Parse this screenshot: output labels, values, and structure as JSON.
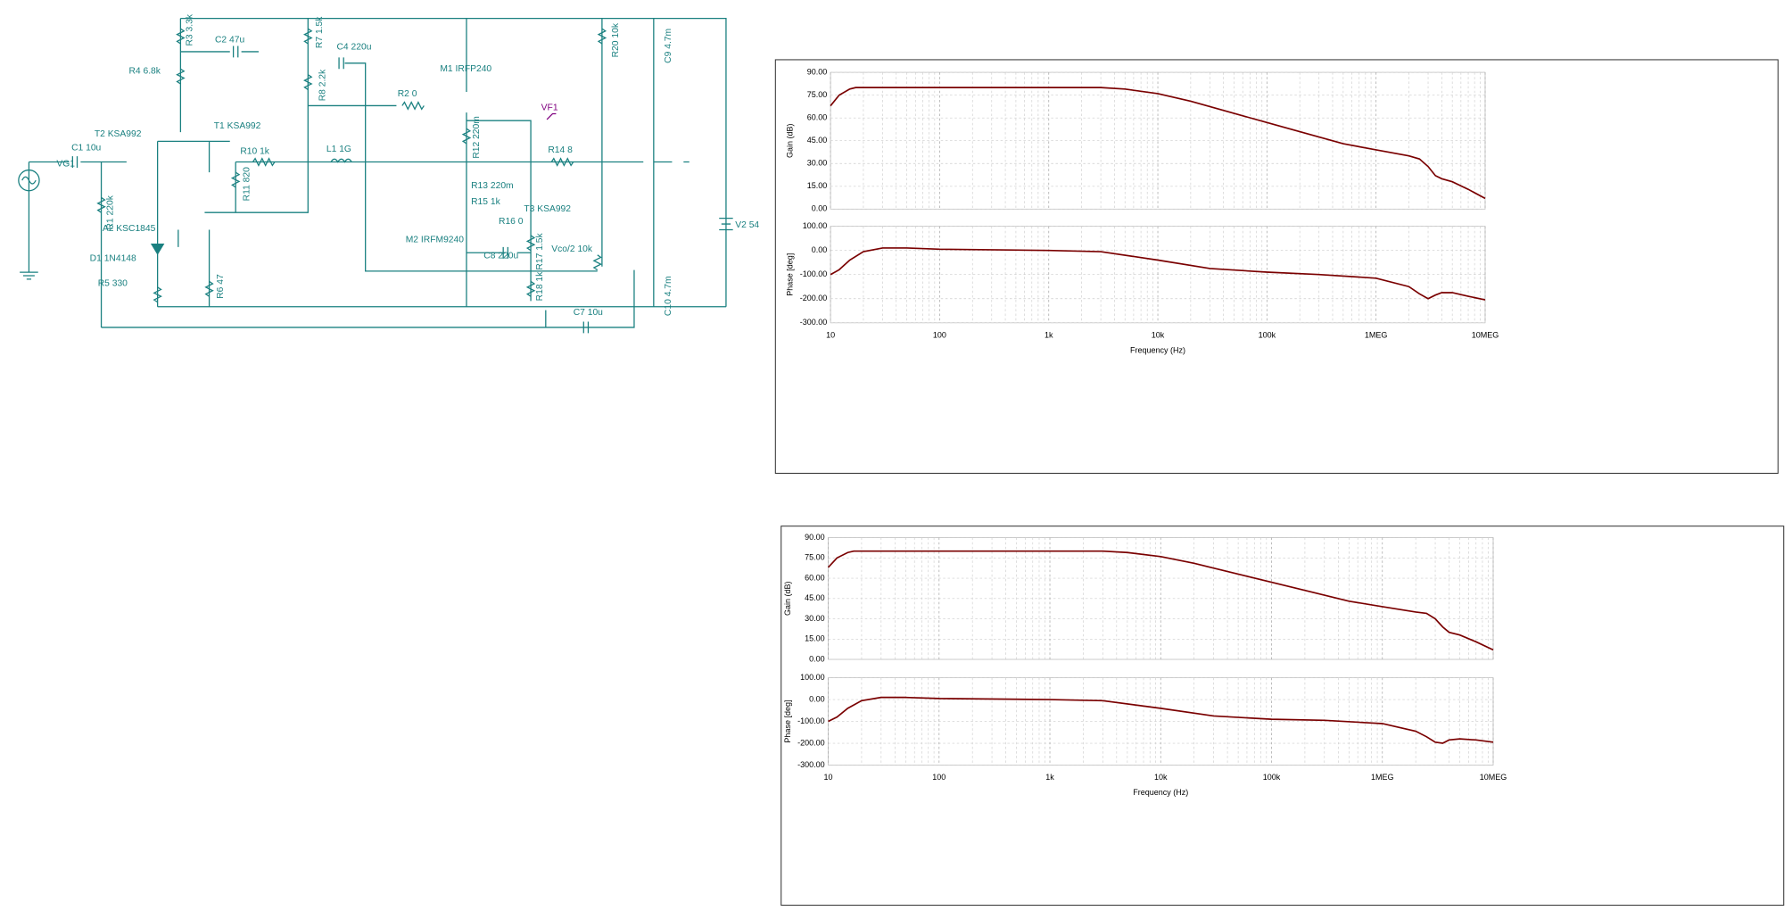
{
  "schematic": {
    "labels": [
      "R3 3.3k",
      "C2 47u",
      "R4 6.8k",
      "R7 1.5k",
      "C4 220u",
      "R8 2.2k",
      "M1 IRFP240",
      "R2 0",
      "VF1",
      "R20 10k",
      "C9 4.7m",
      "T2 KSA992",
      "T1 KSA992",
      "C1 10u",
      "VG1",
      "R10 1k",
      "L1 1G",
      "R12 220m",
      "R14 8",
      "R11 820",
      "R13 220m",
      "R15 1k",
      "T3 KSA992",
      "R1 220k",
      "A2 KSC1845",
      "R16 0",
      "M2 IRFM9240",
      "R17 1.5k",
      "C8 220u",
      "Vco/2 10k",
      "D1 1N4148",
      "V2 54",
      "R5 330",
      "R6 47",
      "R18 1k",
      "C10 4.7m",
      "C7 10u"
    ]
  },
  "chart_data": [
    {
      "type": "line",
      "ylabel": "Gain (dB)",
      "log_x": true,
      "grid": true,
      "xlim": [
        10,
        10000000
      ],
      "xticks": [
        10,
        100,
        {
          "value": 1000,
          "label": "1k"
        },
        {
          "value": 10000,
          "label": "10k"
        },
        {
          "value": 100000,
          "label": "100k"
        },
        {
          "value": 1000000,
          "label": "1MEG"
        },
        {
          "value": 10000000,
          "label": "10MEG"
        }
      ],
      "ylim": [
        0,
        90
      ],
      "yticks": [
        {
          "value": 0,
          "label": "0.00"
        },
        {
          "value": 15,
          "label": "15.00"
        },
        {
          "value": 30,
          "label": "30.00"
        },
        {
          "value": 45,
          "label": "45.00"
        },
        {
          "value": 60,
          "label": "60.00"
        },
        {
          "value": 75,
          "label": "75.00"
        },
        {
          "value": 90,
          "label": "90.00"
        }
      ],
      "x": [
        10,
        12,
        15,
        17,
        20,
        100,
        1000,
        3000,
        5000,
        10000,
        20000,
        50000,
        100000,
        200000,
        500000,
        1000000,
        2000000,
        2500000,
        3000000,
        3500000,
        4000000,
        5000000,
        7000000,
        10000000
      ],
      "series": [
        {
          "color": "#7a0000",
          "values": [
            68,
            75,
            79,
            80,
            80,
            80,
            80,
            80,
            79,
            76,
            71,
            63,
            57,
            51,
            43,
            39,
            35,
            33,
            28,
            22,
            20,
            18,
            13,
            7
          ]
        }
      ]
    },
    {
      "type": "line",
      "ylabel": "Phase [deg]",
      "xlabel": "Frequency (Hz)",
      "log_x": true,
      "grid": true,
      "xlim": [
        10,
        10000000
      ],
      "xticks": [
        10,
        100,
        {
          "value": 1000,
          "label": "1k"
        },
        {
          "value": 10000,
          "label": "10k"
        },
        {
          "value": 100000,
          "label": "100k"
        },
        {
          "value": 1000000,
          "label": "1MEG"
        },
        {
          "value": 10000000,
          "label": "10MEG"
        }
      ],
      "ylim": [
        -300,
        100
      ],
      "yticks": [
        {
          "value": -300,
          "label": "-300.00"
        },
        {
          "value": -200,
          "label": "-200.00"
        },
        {
          "value": -100,
          "label": "-100.00"
        },
        {
          "value": 0,
          "label": "0.00"
        },
        {
          "value": 100,
          "label": "100.00"
        }
      ],
      "x": [
        10,
        12,
        15,
        20,
        30,
        50,
        100,
        1000,
        3000,
        10000,
        30000,
        100000,
        300000,
        1000000,
        2000000,
        2500000,
        3000000,
        3500000,
        4000000,
        5000000,
        7000000,
        10000000
      ],
      "series": [
        {
          "color": "#7a0000",
          "values": [
            -100,
            -80,
            -40,
            -5,
            10,
            10,
            5,
            0,
            -5,
            -40,
            -75,
            -90,
            -100,
            -115,
            -150,
            -180,
            -200,
            -185,
            -175,
            -175,
            -190,
            -205
          ]
        }
      ]
    },
    {
      "type": "line",
      "ylabel": "Gain (dB)",
      "log_x": true,
      "grid": true,
      "xlim": [
        10,
        10000000
      ],
      "xticks": [
        10,
        100,
        {
          "value": 1000,
          "label": "1k"
        },
        {
          "value": 10000,
          "label": "10k"
        },
        {
          "value": 100000,
          "label": "100k"
        },
        {
          "value": 1000000,
          "label": "1MEG"
        },
        {
          "value": 10000000,
          "label": "10MEG"
        }
      ],
      "ylim": [
        0,
        90
      ],
      "yticks": [
        {
          "value": 0,
          "label": "0.00"
        },
        {
          "value": 15,
          "label": "15.00"
        },
        {
          "value": 30,
          "label": "30.00"
        },
        {
          "value": 45,
          "label": "45.00"
        },
        {
          "value": 60,
          "label": "60.00"
        },
        {
          "value": 75,
          "label": "75.00"
        },
        {
          "value": 90,
          "label": "90.00"
        }
      ],
      "x": [
        10,
        12,
        15,
        17,
        20,
        100,
        1000,
        3000,
        5000,
        10000,
        20000,
        50000,
        100000,
        200000,
        500000,
        1000000,
        2000000,
        2500000,
        3000000,
        3500000,
        4000000,
        5000000,
        7000000,
        10000000
      ],
      "series": [
        {
          "color": "#7a0000",
          "values": [
            68,
            75,
            79,
            80,
            80,
            80,
            80,
            80,
            79,
            76,
            71,
            63,
            57,
            51,
            43,
            39,
            35,
            34,
            30,
            24,
            20,
            18,
            13,
            7
          ]
        }
      ]
    },
    {
      "type": "line",
      "ylabel": "Phase [deg]",
      "xlabel": "Frequency (Hz)",
      "log_x": true,
      "grid": true,
      "xlim": [
        10,
        10000000
      ],
      "xticks": [
        10,
        100,
        {
          "value": 1000,
          "label": "1k"
        },
        {
          "value": 10000,
          "label": "10k"
        },
        {
          "value": 100000,
          "label": "100k"
        },
        {
          "value": 1000000,
          "label": "1MEG"
        },
        {
          "value": 10000000,
          "label": "10MEG"
        }
      ],
      "ylim": [
        -300,
        100
      ],
      "yticks": [
        {
          "value": -300,
          "label": "-300.00"
        },
        {
          "value": -200,
          "label": "-200.00"
        },
        {
          "value": -100,
          "label": "-100.00"
        },
        {
          "value": 0,
          "label": "0.00"
        },
        {
          "value": 100,
          "label": "100.00"
        }
      ],
      "x": [
        10,
        12,
        15,
        20,
        30,
        50,
        100,
        1000,
        3000,
        10000,
        30000,
        100000,
        300000,
        1000000,
        2000000,
        2500000,
        3000000,
        3500000,
        4000000,
        5000000,
        7000000,
        10000000
      ],
      "series": [
        {
          "color": "#7a0000",
          "values": [
            -100,
            -80,
            -40,
            -5,
            10,
            10,
            5,
            0,
            -5,
            -40,
            -75,
            -90,
            -95,
            -110,
            -145,
            -170,
            -195,
            -200,
            -185,
            -180,
            -185,
            -195
          ]
        }
      ]
    }
  ]
}
